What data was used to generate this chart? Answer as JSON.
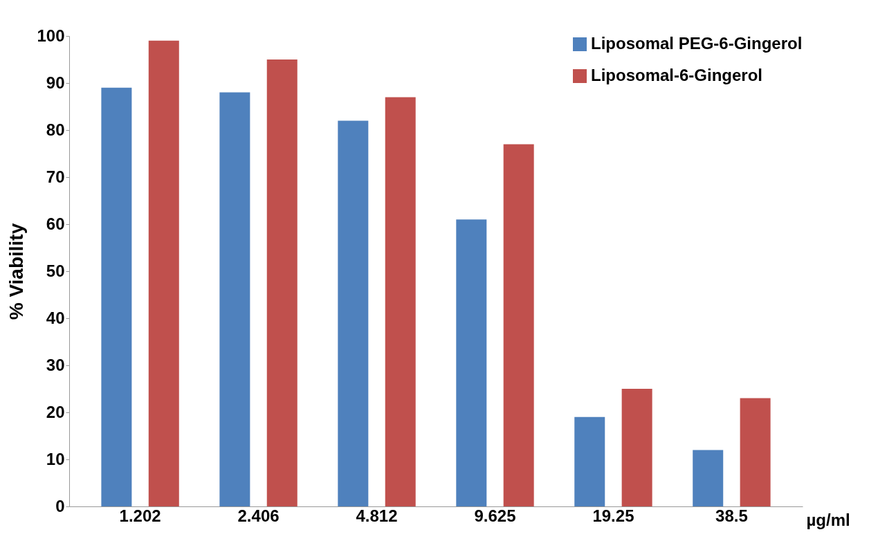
{
  "chart_data": {
    "type": "bar",
    "xlabel": "µg/ml",
    "ylabel": "% Viability",
    "categories": [
      "1.202",
      "2.406",
      "4.812",
      "9.625",
      "19.25",
      "38.5"
    ],
    "series": [
      {
        "name": "Liposomal PEG-6-Gingerol",
        "color": "#4f81bd",
        "values": [
          89,
          88,
          82,
          61,
          19,
          12
        ]
      },
      {
        "name": "Liposomal-6-Gingerol",
        "color": "#c0504d",
        "values": [
          99,
          95,
          87,
          77,
          25,
          23
        ]
      }
    ],
    "ylim": [
      0,
      100
    ],
    "yticks": [
      0,
      10,
      20,
      30,
      40,
      50,
      60,
      70,
      80,
      90,
      100
    ],
    "grid": false,
    "legend": "top right"
  }
}
